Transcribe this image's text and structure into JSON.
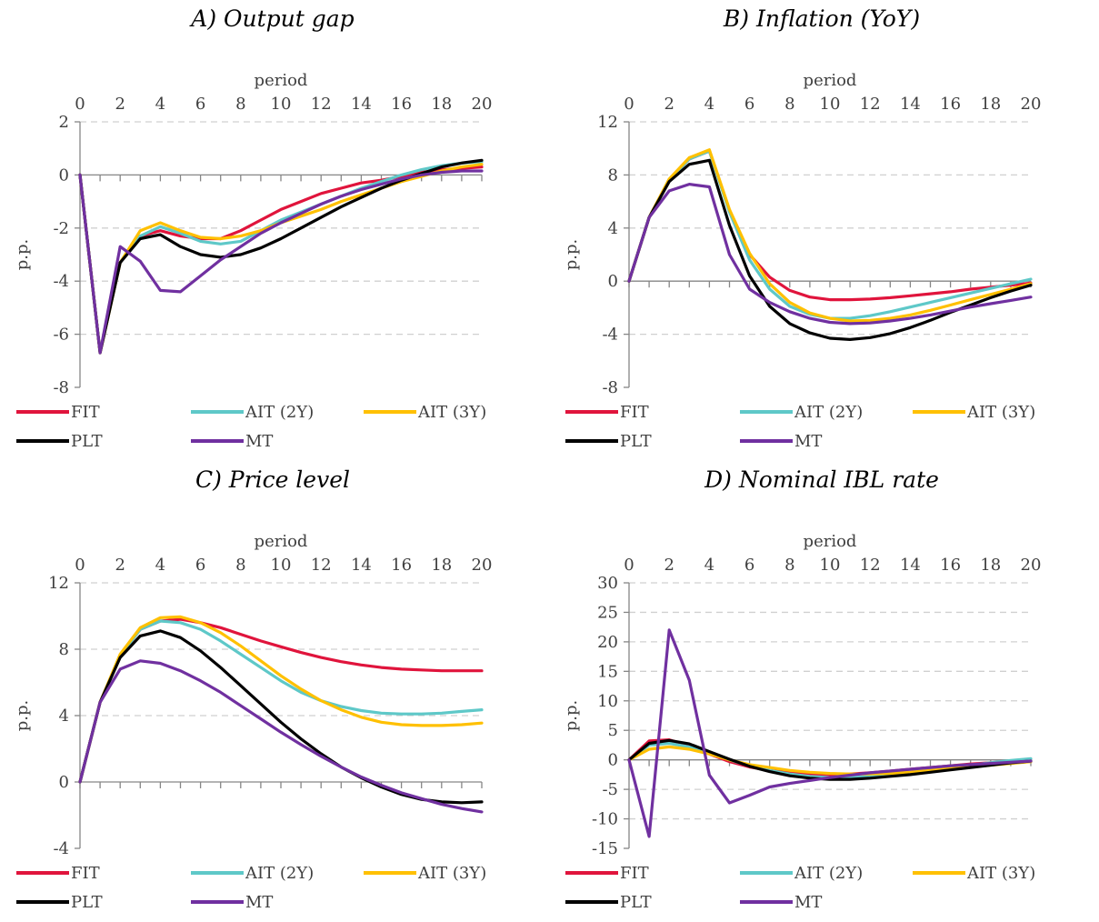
{
  "colors": {
    "FIT": "#e0143c",
    "AIT (2Y)": "#5ec8c8",
    "AIT (3Y)": "#ffc000",
    "PLT": "#000000",
    "MT": "#7030a0"
  },
  "chart_data": [
    {
      "id": "a",
      "type": "line",
      "title": "A) Output gap",
      "xlabel": "period",
      "ylabel": "p.p.",
      "x": [
        0,
        1,
        2,
        3,
        4,
        5,
        6,
        7,
        8,
        9,
        10,
        11,
        12,
        13,
        14,
        15,
        16,
        17,
        18,
        19,
        20
      ],
      "xticks": [
        "0",
        "2",
        "4",
        "6",
        "8",
        "10",
        "12",
        "14",
        "16",
        "18",
        "20"
      ],
      "ylim": [
        -8,
        2
      ],
      "yticks": [
        -8,
        -6,
        -4,
        -2,
        0,
        2
      ],
      "ytick_labels": [
        "-8",
        "-6",
        "-4",
        "-2",
        "0",
        "2"
      ],
      "legend": "bottom",
      "series": [
        {
          "name": "FIT",
          "values": [
            0,
            -6.7,
            -3.3,
            -2.3,
            -2.1,
            -2.3,
            -2.4,
            -2.4,
            -2.1,
            -1.7,
            -1.3,
            -1.0,
            -0.7,
            -0.5,
            -0.3,
            -0.2,
            -0.05,
            0.1,
            0.2,
            0.25,
            0.3
          ]
        },
        {
          "name": "AIT (2Y)",
          "values": [
            0,
            -6.7,
            -3.3,
            -2.3,
            -1.95,
            -2.2,
            -2.5,
            -2.6,
            -2.5,
            -2.1,
            -1.7,
            -1.4,
            -1.1,
            -0.8,
            -0.5,
            -0.25,
            0.0,
            0.2,
            0.35,
            0.45,
            0.5
          ]
        },
        {
          "name": "AIT (3Y)",
          "values": [
            0,
            -6.7,
            -3.3,
            -2.1,
            -1.8,
            -2.1,
            -2.35,
            -2.4,
            -2.3,
            -2.1,
            -1.8,
            -1.55,
            -1.3,
            -1.0,
            -0.75,
            -0.5,
            -0.25,
            -0.05,
            0.15,
            0.3,
            0.4
          ]
        },
        {
          "name": "PLT",
          "values": [
            0,
            -6.7,
            -3.3,
            -2.4,
            -2.25,
            -2.7,
            -3.0,
            -3.1,
            -3.0,
            -2.75,
            -2.4,
            -2.0,
            -1.6,
            -1.2,
            -0.85,
            -0.5,
            -0.2,
            0.05,
            0.3,
            0.45,
            0.55
          ]
        },
        {
          "name": "MT",
          "values": [
            0,
            -6.7,
            -2.7,
            -3.25,
            -4.35,
            -4.4,
            -3.8,
            -3.2,
            -2.7,
            -2.2,
            -1.8,
            -1.45,
            -1.1,
            -0.8,
            -0.55,
            -0.35,
            -0.15,
            0.0,
            0.1,
            0.15,
            0.15
          ]
        }
      ]
    },
    {
      "id": "b",
      "type": "line",
      "title": "B) Inflation (YoY)",
      "xlabel": "period",
      "ylabel": "p.p.",
      "x": [
        0,
        1,
        2,
        3,
        4,
        5,
        6,
        7,
        8,
        9,
        10,
        11,
        12,
        13,
        14,
        15,
        16,
        17,
        18,
        19,
        20
      ],
      "xticks": [
        "0",
        "2",
        "4",
        "6",
        "8",
        "10",
        "12",
        "14",
        "16",
        "18",
        "20"
      ],
      "ylim": [
        -8,
        12
      ],
      "yticks": [
        -8,
        -4,
        0,
        4,
        8,
        12
      ],
      "ytick_labels": [
        "-8",
        "-4",
        "0",
        "4",
        "8",
        "12"
      ],
      "legend": "bottom",
      "series": [
        {
          "name": "FIT",
          "values": [
            0,
            4.8,
            7.6,
            9.2,
            9.8,
            5.3,
            2.0,
            0.3,
            -0.7,
            -1.2,
            -1.4,
            -1.4,
            -1.35,
            -1.25,
            -1.1,
            -0.95,
            -0.8,
            -0.6,
            -0.45,
            -0.3,
            -0.15
          ]
        },
        {
          "name": "AIT (2Y)",
          "values": [
            0,
            4.8,
            7.6,
            9.2,
            9.8,
            5.2,
            1.6,
            -0.6,
            -1.9,
            -2.5,
            -2.8,
            -2.8,
            -2.6,
            -2.3,
            -1.95,
            -1.6,
            -1.25,
            -0.9,
            -0.55,
            -0.2,
            0.15
          ]
        },
        {
          "name": "AIT (3Y)",
          "values": [
            0,
            4.8,
            7.7,
            9.3,
            9.9,
            5.4,
            2.1,
            -0.2,
            -1.6,
            -2.4,
            -2.8,
            -3.0,
            -2.95,
            -2.8,
            -2.55,
            -2.2,
            -1.8,
            -1.4,
            -1.0,
            -0.6,
            -0.2
          ]
        },
        {
          "name": "PLT",
          "values": [
            0,
            4.8,
            7.5,
            8.8,
            9.1,
            4.2,
            0.4,
            -1.9,
            -3.2,
            -3.9,
            -4.3,
            -4.4,
            -4.25,
            -3.95,
            -3.5,
            -2.95,
            -2.35,
            -1.8,
            -1.25,
            -0.75,
            -0.3
          ]
        },
        {
          "name": "MT",
          "values": [
            0,
            4.8,
            6.8,
            7.3,
            7.1,
            2.0,
            -0.6,
            -1.6,
            -2.3,
            -2.8,
            -3.1,
            -3.2,
            -3.15,
            -3.0,
            -2.8,
            -2.55,
            -2.25,
            -1.95,
            -1.7,
            -1.45,
            -1.2
          ]
        }
      ]
    },
    {
      "id": "c",
      "type": "line",
      "title": "C) Price level",
      "xlabel": "period",
      "ylabel": "p.p.",
      "x": [
        0,
        1,
        2,
        3,
        4,
        5,
        6,
        7,
        8,
        9,
        10,
        11,
        12,
        13,
        14,
        15,
        16,
        17,
        18,
        19,
        20
      ],
      "xticks": [
        "0",
        "2",
        "4",
        "6",
        "8",
        "10",
        "12",
        "14",
        "16",
        "18",
        "20"
      ],
      "ylim": [
        -4,
        12
      ],
      "yticks": [
        -4,
        0,
        4,
        8,
        12
      ],
      "ytick_labels": [
        "-4",
        "0",
        "4",
        "8",
        "12"
      ],
      "legend": "bottom",
      "series": [
        {
          "name": "FIT",
          "values": [
            0,
            4.8,
            7.6,
            9.2,
            9.7,
            9.8,
            9.6,
            9.3,
            8.9,
            8.5,
            8.15,
            7.8,
            7.5,
            7.25,
            7.05,
            6.9,
            6.8,
            6.75,
            6.7,
            6.7,
            6.7
          ]
        },
        {
          "name": "AIT (2Y)",
          "values": [
            0,
            4.8,
            7.6,
            9.2,
            9.7,
            9.6,
            9.2,
            8.5,
            7.7,
            6.9,
            6.1,
            5.4,
            4.9,
            4.55,
            4.3,
            4.15,
            4.1,
            4.1,
            4.15,
            4.25,
            4.35
          ]
        },
        {
          "name": "AIT (3Y)",
          "values": [
            0,
            4.8,
            7.7,
            9.3,
            9.9,
            9.95,
            9.6,
            9.0,
            8.2,
            7.3,
            6.4,
            5.6,
            4.9,
            4.35,
            3.9,
            3.6,
            3.45,
            3.4,
            3.4,
            3.45,
            3.55
          ]
        },
        {
          "name": "PLT",
          "values": [
            0,
            4.8,
            7.5,
            8.8,
            9.1,
            8.7,
            7.9,
            6.9,
            5.8,
            4.7,
            3.6,
            2.6,
            1.7,
            0.9,
            0.25,
            -0.3,
            -0.75,
            -1.05,
            -1.2,
            -1.25,
            -1.2
          ]
        },
        {
          "name": "MT",
          "values": [
            0,
            4.8,
            6.8,
            7.3,
            7.15,
            6.7,
            6.1,
            5.4,
            4.6,
            3.8,
            3.0,
            2.25,
            1.55,
            0.9,
            0.3,
            -0.2,
            -0.65,
            -1.0,
            -1.35,
            -1.6,
            -1.8
          ]
        }
      ]
    },
    {
      "id": "d",
      "type": "line",
      "title": "D) Nominal IBL rate",
      "xlabel": "period",
      "ylabel": "p.p.",
      "x": [
        0,
        1,
        2,
        3,
        4,
        5,
        6,
        7,
        8,
        9,
        10,
        11,
        12,
        13,
        14,
        15,
        16,
        17,
        18,
        19,
        20
      ],
      "xticks": [
        "0",
        "2",
        "4",
        "6",
        "8",
        "10",
        "12",
        "14",
        "16",
        "18",
        "20"
      ],
      "ylim": [
        -15,
        30
      ],
      "yticks": [
        -15,
        -10,
        -5,
        0,
        5,
        10,
        15,
        20,
        25,
        30
      ],
      "ytick_labels": [
        "-15",
        "-10",
        "-5",
        "0",
        "5",
        "10",
        "15",
        "20",
        "25",
        "30"
      ],
      "legend": "bottom",
      "series": [
        {
          "name": "FIT",
          "values": [
            0,
            3.2,
            3.4,
            2.4,
            1.0,
            -0.3,
            -1.2,
            -1.8,
            -2.2,
            -2.4,
            -2.5,
            -2.4,
            -2.2,
            -1.9,
            -1.6,
            -1.3,
            -1.0,
            -0.7,
            -0.5,
            -0.3,
            -0.2
          ]
        },
        {
          "name": "AIT (2Y)",
          "values": [
            0,
            2.5,
            2.8,
            2.2,
            1.2,
            0.0,
            -1.0,
            -1.8,
            -2.4,
            -2.8,
            -3.0,
            -3.0,
            -2.8,
            -2.5,
            -2.1,
            -1.7,
            -1.3,
            -0.9,
            -0.5,
            -0.1,
            0.2
          ]
        },
        {
          "name": "AIT (3Y)",
          "values": [
            0,
            1.8,
            2.2,
            1.8,
            1.0,
            0.0,
            -0.8,
            -1.3,
            -1.8,
            -2.1,
            -2.3,
            -2.4,
            -2.4,
            -2.3,
            -2.1,
            -1.8,
            -1.5,
            -1.2,
            -0.9,
            -0.6,
            -0.3
          ]
        },
        {
          "name": "PLT",
          "values": [
            0,
            2.8,
            3.3,
            2.7,
            1.4,
            0.1,
            -1.1,
            -2.0,
            -2.7,
            -3.1,
            -3.3,
            -3.3,
            -3.1,
            -2.8,
            -2.5,
            -2.1,
            -1.7,
            -1.3,
            -0.9,
            -0.5,
            -0.2
          ]
        },
        {
          "name": "MT",
          "values": [
            0,
            -13.0,
            22.0,
            13.5,
            -2.6,
            -7.3,
            -6.0,
            -4.6,
            -4.0,
            -3.5,
            -3.0,
            -2.6,
            -2.2,
            -1.9,
            -1.6,
            -1.3,
            -1.0,
            -0.8,
            -0.6,
            -0.4,
            -0.2
          ]
        }
      ]
    }
  ]
}
